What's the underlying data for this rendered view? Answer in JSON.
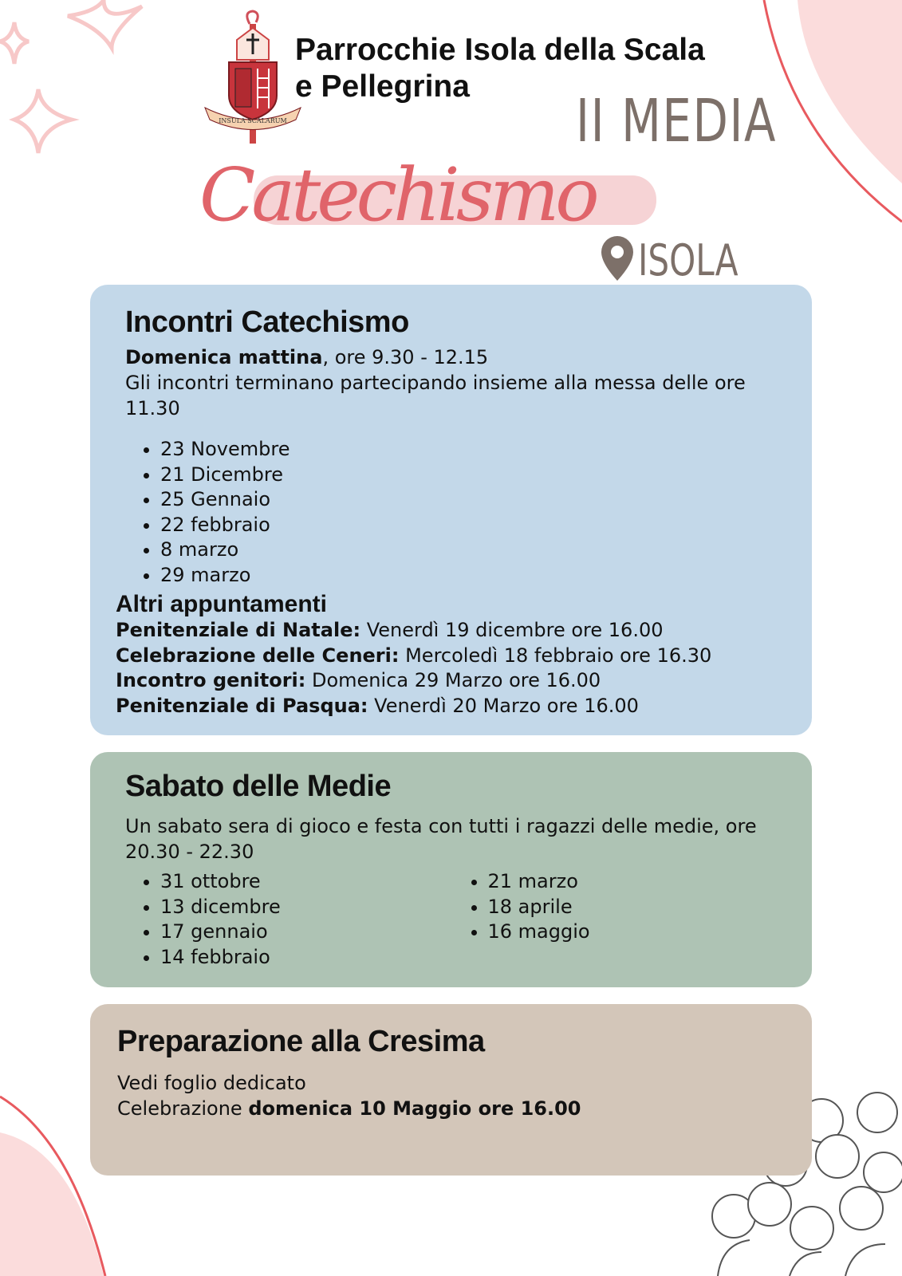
{
  "header": {
    "title_line1": "Parrocchie Isola della Scala",
    "title_line2": "e Pellegrina",
    "grade": "II MEDIA",
    "script_title": "Catechismo",
    "place": "ISOLA",
    "logo_motto": "INSULA SCALARUM",
    "accent_color": "#e0646a",
    "grey_color": "#7d7069"
  },
  "incontri": {
    "title": "Incontri Catechismo",
    "when_bold": "Domenica mattina",
    "when_rest": ", ore 9.30 - 12.15",
    "note": "Gli incontri terminano partecipando insieme alla messa delle ore 11.30",
    "dates": [
      "23 Novembre",
      "21 Dicembre",
      "25 Gennaio",
      "22 febbraio",
      "8 marzo",
      "29 marzo"
    ],
    "altri_title": "Altri appuntamenti",
    "altri": [
      {
        "label": "Penitenziale di Natale:",
        "value": " Venerdì 19 dicembre ore 16.00"
      },
      {
        "label": "Celebrazione delle Ceneri:",
        "value": " Mercoledì 18 febbraio ore 16.30"
      },
      {
        "label": "Incontro genitori:",
        "value": " Domenica 29 Marzo ore 16.00"
      },
      {
        "label": "Penitenziale di Pasqua:",
        "value": " Venerdì 20 Marzo ore 16.00"
      }
    ],
    "bg": "#c3d8e9"
  },
  "sabato": {
    "title": "Sabato delle Medie",
    "desc": "Un sabato sera di gioco e festa con tutti i ragazzi delle medie, ore 20.30 - 22.30",
    "dates_left": [
      "31 ottobre",
      "13 dicembre",
      "17 gennaio",
      "14 febbraio"
    ],
    "dates_right": [
      "21 marzo",
      "18 aprile",
      "16 maggio"
    ],
    "bg": "#aec3b4"
  },
  "cresima": {
    "title": "Preparazione alla Cresima",
    "line1": "Vedi foglio dedicato",
    "line2_plain": "Celebrazione ",
    "line2_bold": "domenica 10 Maggio ore 16.00",
    "bg": "#d3c6b9"
  }
}
